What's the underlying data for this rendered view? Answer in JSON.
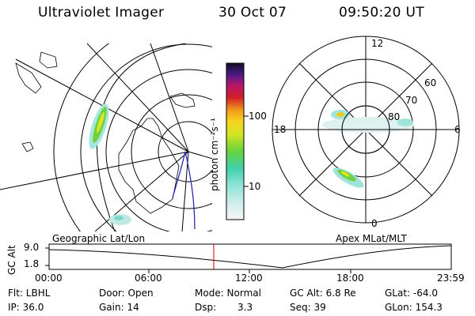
{
  "header": {
    "title": "Ultraviolet Imager",
    "date": "30 Oct 07",
    "time": "09:50:20 UT"
  },
  "left_panel": {
    "caption": "Geographic Lat/Lon"
  },
  "right_panel": {
    "caption": "Apex MLat/MLT",
    "mlt_labels": {
      "top": "12",
      "left": "18",
      "right": "6",
      "bottom": "0"
    },
    "lat_labels": [
      "60",
      "70",
      "80"
    ]
  },
  "colorbar": {
    "unit": "photon cm⁻²s⁻¹",
    "ticks": [
      "100",
      "10"
    ],
    "scale": "log"
  },
  "timeline": {
    "ylabel": "GC Alt",
    "y_ticks": [
      "9.0",
      "1.8"
    ],
    "x_ticks": [
      "00:00",
      "06:00",
      "12:00",
      "18:00",
      "23:59"
    ],
    "current_time": "09:50:20",
    "marker_color": "#cc0000"
  },
  "footer": {
    "row1": {
      "filter": "Flt: LBHL",
      "door": "Door: Open",
      "mode": "Mode: Normal",
      "gc_alt": "GC Alt: 6.8 Re",
      "glat": "GLat: -64.0"
    },
    "row2": {
      "ip": "IP: 36.0",
      "gain": "Gain: 14",
      "dsp_label": "Dsp:",
      "dsp_value": "3.3",
      "seq": "Seq: 39",
      "glon": "GLon: 154.3"
    }
  }
}
